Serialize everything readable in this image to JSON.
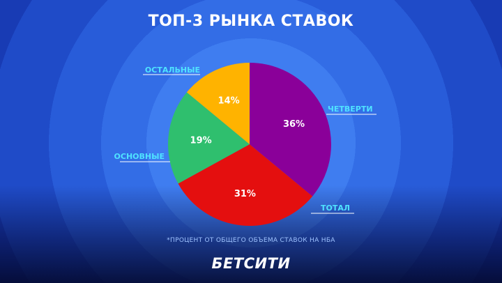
{
  "chart_data": {
    "type": "pie",
    "title": "ТОП-3 РЫНКА СТАВОК",
    "slices": [
      {
        "label": "ЧЕТВЕРТИ",
        "value": 36,
        "value_label": "36%",
        "color": "#8a0099"
      },
      {
        "label": "ТОТАЛ",
        "value": 31,
        "value_label": "31%",
        "color": "#e40f0f"
      },
      {
        "label": "ОСНОВНЫЕ",
        "value": 19,
        "value_label": "19%",
        "color": "#2fbf6e"
      },
      {
        "label": "ОСТАЛЬНЫЕ",
        "value": 14,
        "value_label": "14%",
        "color": "#ffb300"
      }
    ],
    "footnote": "*ПРОЦЕНТ ОТ ОБЩЕГО ОБЪЕМА СТАВОК НА НБА"
  },
  "brand": "БЕТСИТИ",
  "colors": {
    "label_text": "#4fe3ff",
    "leader_line": "#ffffff"
  }
}
